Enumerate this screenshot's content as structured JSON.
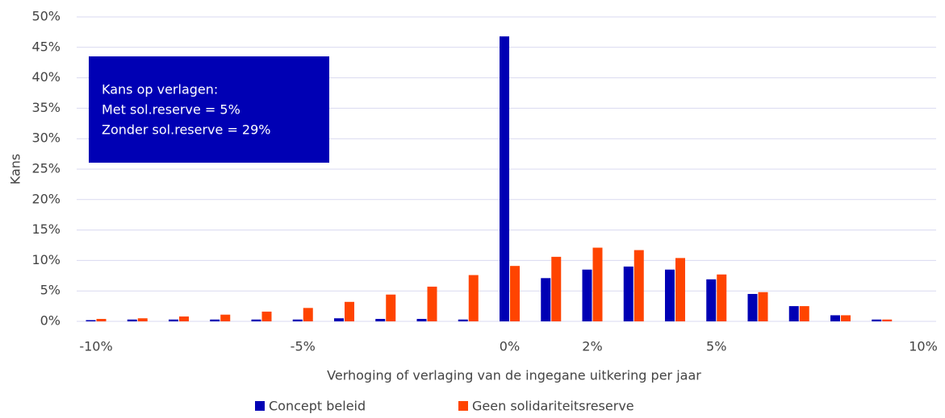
{
  "chart_data": {
    "type": "bar",
    "y_label": "Kans",
    "x_label": "Verhoging of verlaging van de ingegane uitkering per jaar",
    "annotation": [
      "Kans op verlagen:",
      "Met sol.reserve = 5%",
      "Zonder sol.reserve = 29%"
    ],
    "categories": [
      "-10%",
      null,
      null,
      null,
      null,
      "-5%",
      null,
      null,
      null,
      null,
      "0%",
      null,
      "2%",
      null,
      null,
      "5%",
      null,
      null,
      null,
      null,
      "10%"
    ],
    "series": [
      {
        "name": "Concept beleid",
        "color": "#0000b4",
        "values": [
          0.2,
          0.3,
          0.3,
          0.3,
          0.3,
          0.3,
          0.5,
          0.4,
          0.4,
          0.3,
          46.8,
          7.1,
          8.5,
          9.0,
          8.5,
          6.9,
          4.5,
          2.5,
          1.0,
          0.3,
          0
        ]
      },
      {
        "name": "Geen solidariteitsreserve",
        "color": "#ff4400",
        "values": [
          0.4,
          0.5,
          0.8,
          1.1,
          1.6,
          2.2,
          3.2,
          4.4,
          5.7,
          7.6,
          9.1,
          10.6,
          12.1,
          11.7,
          10.4,
          7.7,
          4.8,
          2.5,
          1.0,
          0.3,
          0
        ]
      }
    ],
    "ylim": [
      0,
      50
    ],
    "yticks": [
      {
        "value": 0,
        "label": "0%"
      },
      {
        "value": 5,
        "label": "5%"
      },
      {
        "value": 10,
        "label": "10%"
      },
      {
        "value": 15,
        "label": "15%"
      },
      {
        "value": 20,
        "label": "20%"
      },
      {
        "value": 25,
        "label": "25%"
      },
      {
        "value": 30,
        "label": "30%"
      },
      {
        "value": 35,
        "label": "35%"
      },
      {
        "value": 40,
        "label": "40%"
      },
      {
        "value": 45,
        "label": "45%"
      },
      {
        "value": 50,
        "label": "50%"
      }
    ],
    "grid": true,
    "legend": "bottom"
  }
}
